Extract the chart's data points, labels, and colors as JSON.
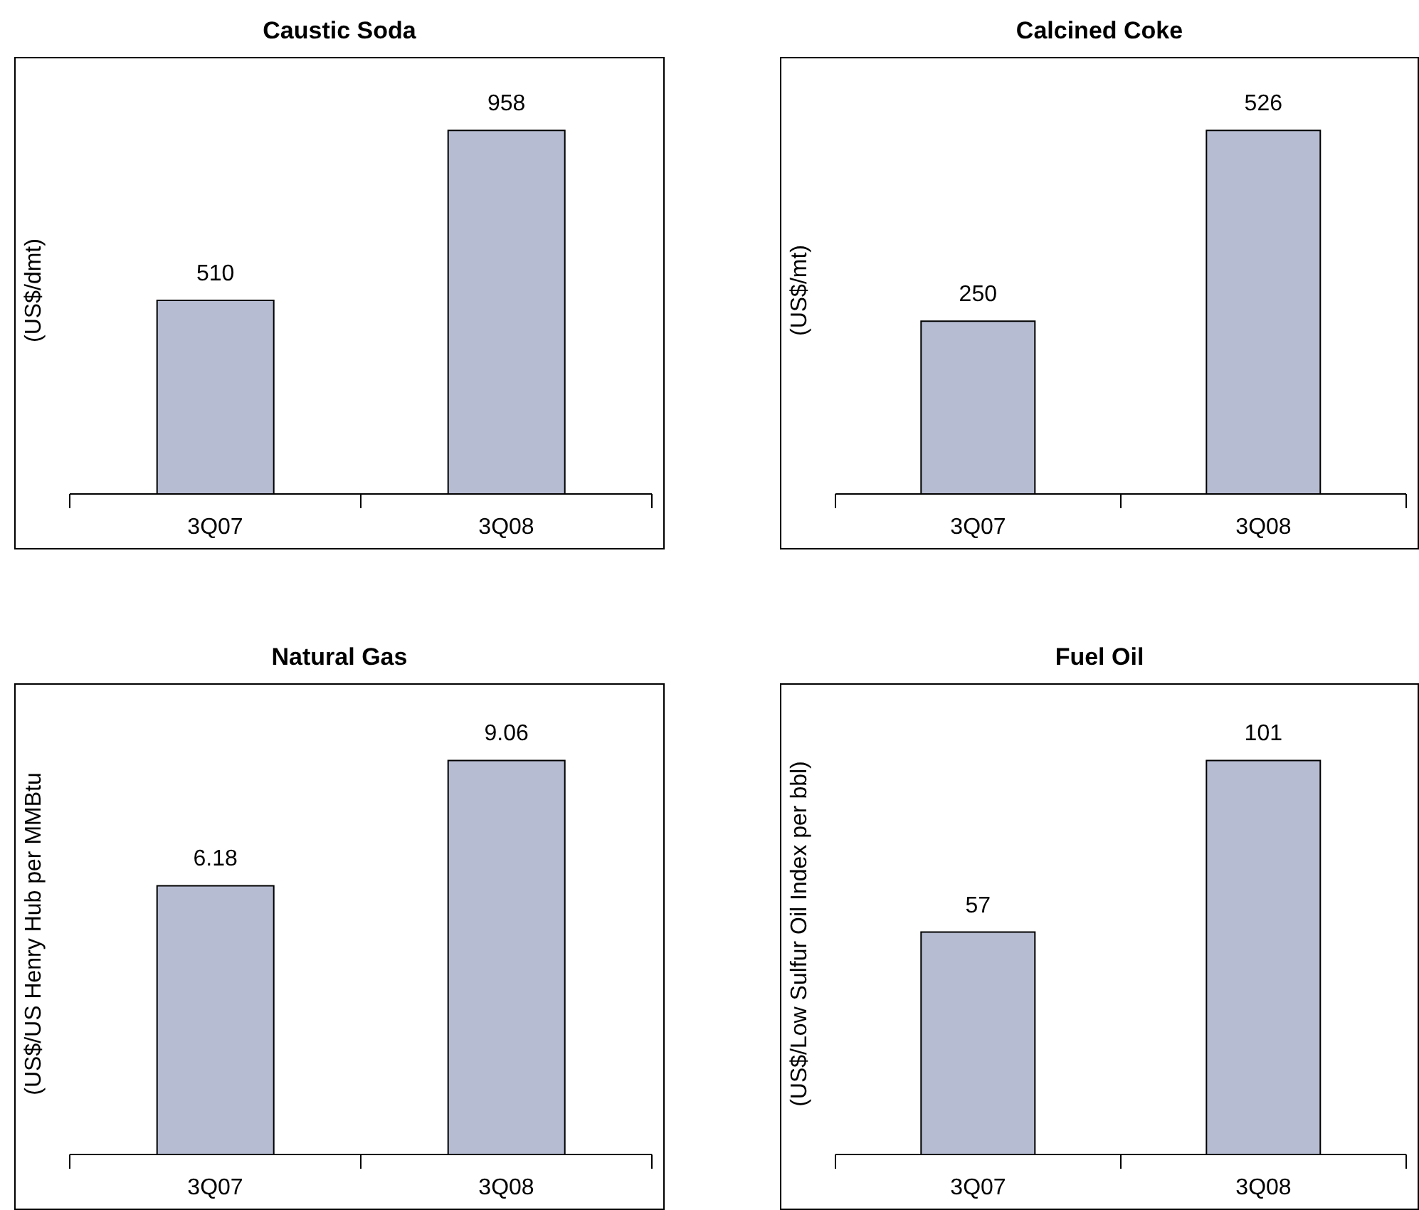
{
  "chart_data": [
    {
      "type": "bar",
      "title": "Caustic Soda",
      "ylabel": "(US$/dmt)",
      "categories": [
        "3Q07",
        "3Q08"
      ],
      "values": [
        510,
        958
      ],
      "color": "#b6bcd2",
      "data_labels": true
    },
    {
      "type": "bar",
      "title": "Calcined Coke",
      "ylabel": "(US$/mt)",
      "categories": [
        "3Q07",
        "3Q08"
      ],
      "values": [
        250,
        526
      ],
      "color": "#b6bcd2",
      "data_labels": true
    },
    {
      "type": "bar",
      "title": "Natural Gas",
      "ylabel": "(US$/US Henry Hub per MMBtu",
      "categories": [
        "3Q07",
        "3Q08"
      ],
      "values": [
        6.18,
        9.06
      ],
      "color": "#b6bcd2",
      "data_labels": true
    },
    {
      "type": "bar",
      "title": "Fuel Oil",
      "ylabel": "(US$/Low Sulfur Oil Index per bbl)",
      "categories": [
        "3Q07",
        "3Q08"
      ],
      "values": [
        57,
        101
      ],
      "color": "#b6bcd2",
      "data_labels": true
    }
  ]
}
